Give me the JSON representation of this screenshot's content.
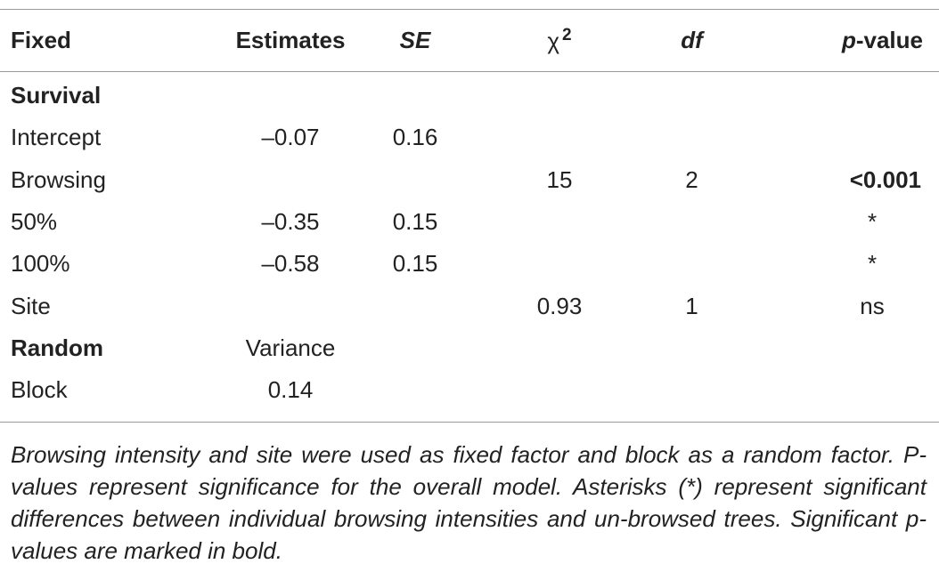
{
  "table": {
    "headers": {
      "fixed": "Fixed",
      "estimates": "Estimates",
      "se": "SE",
      "chi": "χ",
      "chi_sup": "2",
      "df": "df",
      "p_italic": "p",
      "p_rest": "-value"
    },
    "rows": [
      {
        "label": "Survival",
        "estimate": "",
        "se": "",
        "chi": "",
        "df": "",
        "p": ""
      },
      {
        "label": "Intercept",
        "estimate": "–0.07",
        "se": "0.16",
        "chi": "",
        "df": "",
        "p": ""
      },
      {
        "label": "Browsing",
        "estimate": "",
        "se": "",
        "chi": "15",
        "df": "2",
        "p": "<0.001"
      },
      {
        "label": "50%",
        "estimate": "–0.35",
        "se": "0.15",
        "chi": "",
        "df": "",
        "p": "*"
      },
      {
        "label": "100%",
        "estimate": "–0.58",
        "se": "0.15",
        "chi": "",
        "df": "",
        "p": "*"
      },
      {
        "label": "Site",
        "estimate": "",
        "se": "",
        "chi": "0.93",
        "df": "1",
        "p": "ns"
      },
      {
        "label": "Random",
        "estimate": "Variance",
        "se": "",
        "chi": "",
        "df": "",
        "p": ""
      },
      {
        "label": "Block",
        "estimate": "0.14",
        "se": "",
        "chi": "",
        "df": "",
        "p": ""
      }
    ]
  },
  "caption": "Browsing intensity and site were used as fixed factor and block as a random factor. P-values represent significance for the overall model. Asterisks (*) represent significant differences between individual browsing intensities and un-browsed trees. Significant p-values are marked in bold."
}
